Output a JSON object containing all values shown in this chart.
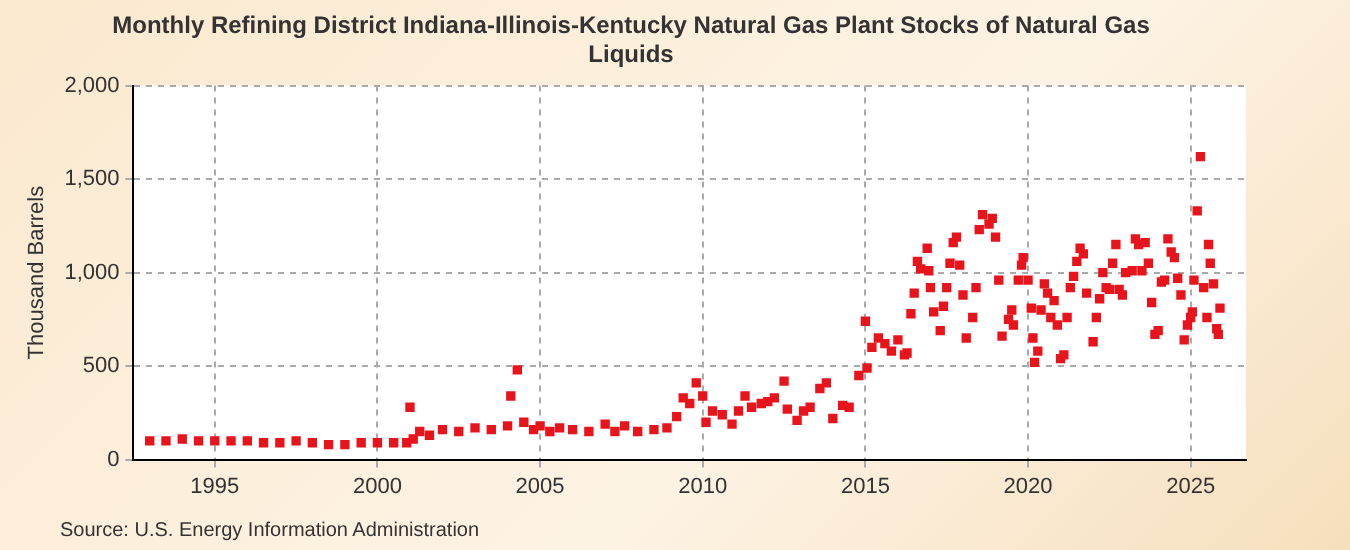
{
  "chart_data": {
    "type": "scatter",
    "title": "Monthly Refining District Indiana-Illinois-Kentucky Natural Gas Plant Stocks of Natural Gas Liquids",
    "ylabel": "Thousand Barrels",
    "annotations": [
      "Source: U.S. Energy Information Administration"
    ],
    "xlim": [
      1992.5,
      2026.7
    ],
    "xticks": [
      1995,
      2000,
      2005,
      2010,
      2015,
      2020,
      2025
    ],
    "ylim": [
      0,
      2000
    ],
    "yticks": [
      0,
      500,
      {
        "value": 1000,
        "label": "1,000"
      },
      {
        "value": 1500,
        "label": "1,500"
      },
      {
        "value": 2000,
        "label": "2,000"
      }
    ],
    "grid": true,
    "legend": false,
    "marker": "square",
    "series": [
      {
        "color": "#e8141c",
        "x": [
          1993.0,
          1993.5,
          1994.0,
          1994.5,
          1995.0,
          1995.5,
          1996.0,
          1996.5,
          1997.0,
          1997.5,
          1998.0,
          1998.5,
          1999.0,
          1999.5,
          2000.0,
          2000.5,
          2000.9,
          2001.0,
          2001.1,
          2001.3,
          2001.6,
          2002.0,
          2002.5,
          2003.0,
          2003.5,
          2004.0,
          2004.1,
          2004.3,
          2004.5,
          2004.8,
          2005.0,
          2005.3,
          2005.6,
          2006.0,
          2006.5,
          2007.0,
          2007.3,
          2007.6,
          2008.0,
          2008.5,
          2008.9,
          2009.2,
          2009.4,
          2009.6,
          2009.8,
          2010.0,
          2010.1,
          2010.3,
          2010.6,
          2010.9,
          2011.1,
          2011.3,
          2011.5,
          2011.8,
          2012.0,
          2012.2,
          2012.5,
          2012.6,
          2012.9,
          2013.1,
          2013.3,
          2013.6,
          2013.8,
          2014.0,
          2014.3,
          2014.5,
          2014.8,
          2015.0,
          2015.05,
          2015.2,
          2015.4,
          2015.6,
          2015.8,
          2016.0,
          2016.2,
          2016.28,
          2016.4,
          2016.5,
          2016.6,
          2016.7,
          2016.9,
          2016.95,
          2017.0,
          2017.1,
          2017.3,
          2017.4,
          2017.5,
          2017.6,
          2017.7,
          2017.8,
          2017.9,
          2018.0,
          2018.1,
          2018.3,
          2018.4,
          2018.5,
          2018.6,
          2018.8,
          2018.9,
          2019.0,
          2019.1,
          2019.2,
          2019.4,
          2019.5,
          2019.55,
          2019.7,
          2019.8,
          2019.85,
          2020.0,
          2020.1,
          2020.15,
          2020.2,
          2020.3,
          2020.4,
          2020.5,
          2020.6,
          2020.7,
          2020.8,
          2020.9,
          2021.0,
          2021.1,
          2021.2,
          2021.3,
          2021.4,
          2021.5,
          2021.6,
          2021.7,
          2021.8,
          2022.0,
          2022.1,
          2022.2,
          2022.3,
          2022.4,
          2022.5,
          2022.6,
          2022.7,
          2022.8,
          2022.9,
          2023.0,
          2023.2,
          2023.3,
          2023.4,
          2023.5,
          2023.6,
          2023.7,
          2023.8,
          2023.9,
          2024.0,
          2024.1,
          2024.2,
          2024.3,
          2024.4,
          2024.5,
          2024.6,
          2024.7,
          2024.8,
          2024.9,
          2025.0,
          2025.05,
          2025.1,
          2025.2,
          2025.3,
          2025.4,
          2025.5,
          2025.55,
          2025.6,
          2025.7,
          2025.8,
          2025.85,
          2025.9
        ],
        "values": [
          100,
          100,
          110,
          100,
          100,
          100,
          100,
          90,
          90,
          100,
          90,
          80,
          80,
          90,
          90,
          90,
          90,
          280,
          110,
          150,
          130,
          160,
          150,
          170,
          160,
          180,
          340,
          480,
          200,
          160,
          180,
          150,
          170,
          160,
          150,
          190,
          150,
          180,
          150,
          160,
          170,
          230,
          330,
          300,
          410,
          340,
          200,
          260,
          240,
          190,
          260,
          340,
          280,
          300,
          310,
          330,
          420,
          270,
          210,
          260,
          280,
          380,
          410,
          220,
          290,
          280,
          450,
          740,
          490,
          600,
          650,
          620,
          580,
          640,
          560,
          570,
          780,
          890,
          1060,
          1020,
          1130,
          1010,
          920,
          790,
          690,
          820,
          920,
          1050,
          1160,
          1190,
          1040,
          880,
          650,
          760,
          920,
          1230,
          1310,
          1260,
          1290,
          1190,
          960,
          660,
          750,
          800,
          720,
          960,
          1040,
          1080,
          960,
          810,
          650,
          520,
          580,
          800,
          940,
          890,
          760,
          850,
          720,
          540,
          560,
          760,
          920,
          980,
          1060,
          1130,
          1100,
          890,
          630,
          760,
          860,
          1000,
          920,
          910,
          1050,
          1150,
          910,
          880,
          1000,
          1010,
          1180,
          1150,
          1010,
          1160,
          1050,
          840,
          670,
          690,
          950,
          960,
          1180,
          1110,
          1080,
          970,
          880,
          640,
          720,
          760,
          790,
          960,
          1330,
          1620,
          920,
          760,
          1150,
          1050,
          940,
          700,
          670,
          810
        ]
      }
    ]
  }
}
